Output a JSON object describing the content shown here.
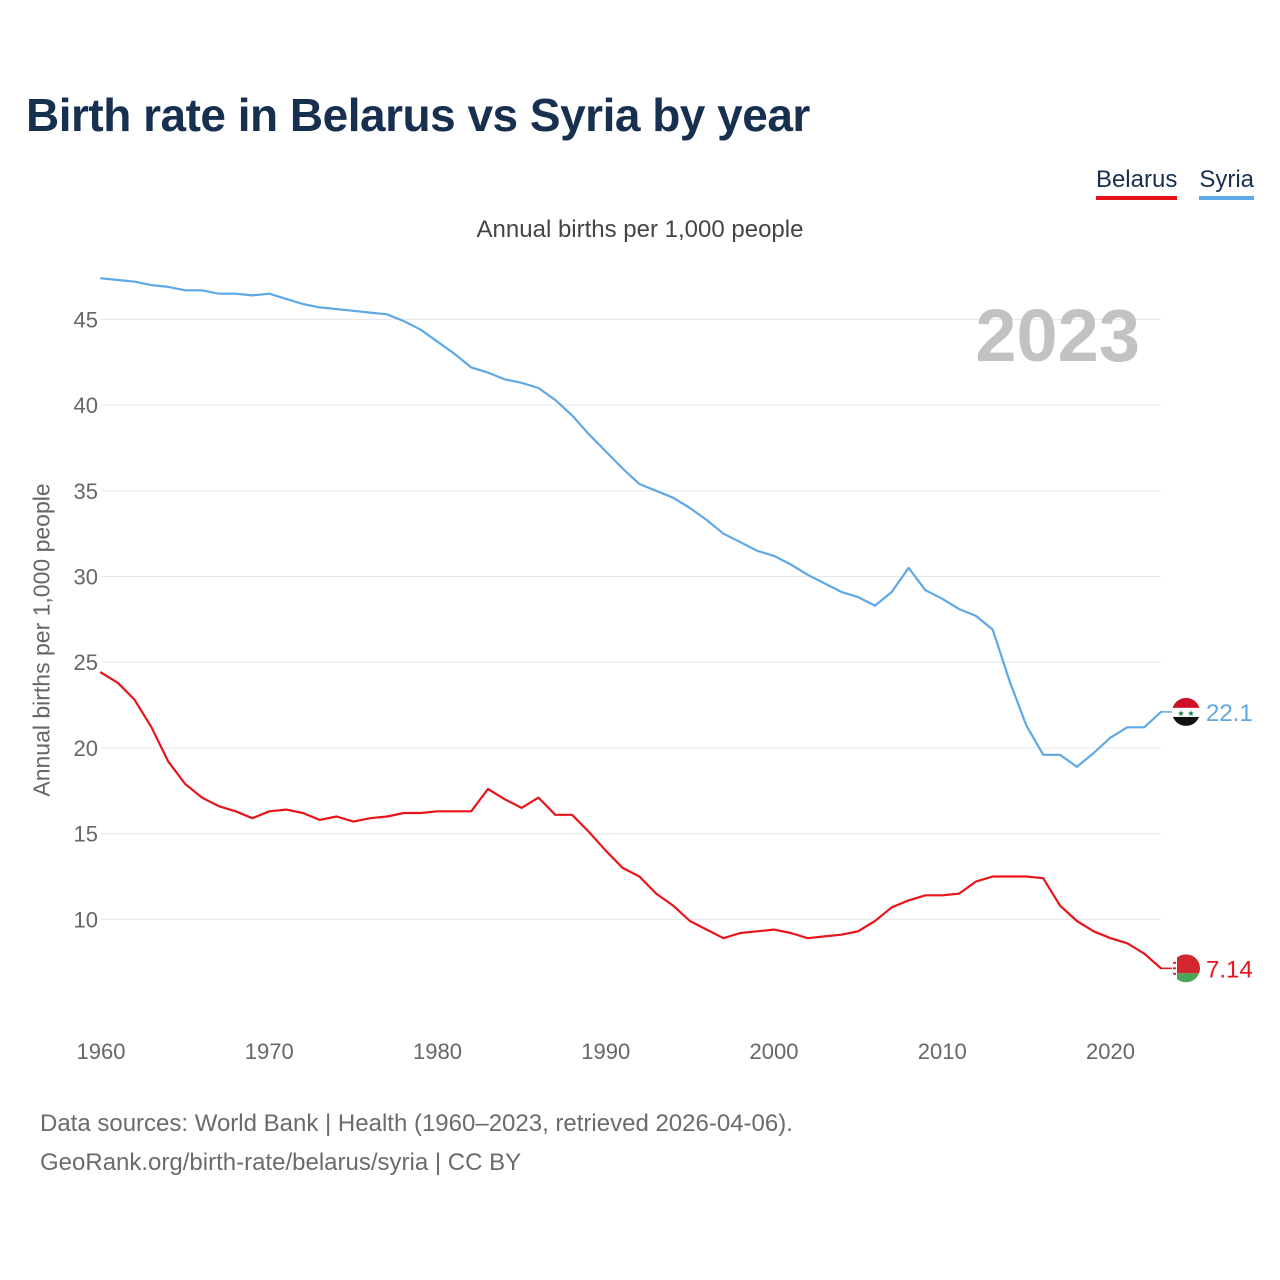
{
  "title": "Birth rate in Belarus vs Syria by year",
  "subtitle": "Annual births per 1,000 people",
  "source_line1": "Data sources: World Bank | Health (1960–2023, retrieved 2026-04-06).",
  "source_line2": "GeoRank.org/birth-rate/belarus/syria | CC BY",
  "legend": [
    {
      "label": "Belarus",
      "color": "#e8141a"
    },
    {
      "label": "Syria",
      "color": "#5ea8e6"
    }
  ],
  "chart_data": {
    "type": "line",
    "title": "Birth rate in Belarus vs Syria by year",
    "subtitle": "Annual births per 1,000 people",
    "xlabel": "",
    "ylabel": "Annual births per 1,000 people",
    "current_year": "2023",
    "xlim": [
      1960,
      2023
    ],
    "ylim": [
      5,
      48
    ],
    "x_ticks": [
      1960,
      1970,
      1980,
      1990,
      2000,
      2010,
      2020
    ],
    "y_ticks": [
      10,
      15,
      20,
      25,
      30,
      35,
      40,
      45
    ],
    "grid": true,
    "legend_position": "top-right",
    "x": [
      1960,
      1961,
      1962,
      1963,
      1964,
      1965,
      1966,
      1967,
      1968,
      1969,
      1970,
      1971,
      1972,
      1973,
      1974,
      1975,
      1976,
      1977,
      1978,
      1979,
      1980,
      1981,
      1982,
      1983,
      1984,
      1985,
      1986,
      1987,
      1988,
      1989,
      1990,
      1991,
      1992,
      1993,
      1994,
      1995,
      1996,
      1997,
      1998,
      1999,
      2000,
      2001,
      2002,
      2003,
      2004,
      2005,
      2006,
      2007,
      2008,
      2009,
      2010,
      2011,
      2012,
      2013,
      2014,
      2015,
      2016,
      2017,
      2018,
      2019,
      2020,
      2021,
      2022,
      2023
    ],
    "series": [
      {
        "name": "Belarus",
        "color": "#e8141a",
        "end_label": "7.14",
        "values": [
          24.4,
          23.8,
          22.8,
          21.2,
          19.2,
          17.9,
          17.1,
          16.6,
          16.3,
          15.9,
          16.3,
          16.4,
          16.2,
          15.8,
          16.0,
          15.7,
          15.9,
          16.0,
          16.2,
          16.2,
          16.3,
          16.3,
          16.3,
          17.6,
          17.0,
          16.5,
          17.1,
          16.1,
          16.1,
          15.1,
          14.0,
          13.0,
          12.5,
          11.5,
          10.8,
          9.9,
          9.4,
          8.9,
          9.2,
          9.3,
          9.4,
          9.2,
          8.9,
          9.0,
          9.1,
          9.3,
          9.9,
          10.7,
          11.1,
          11.4,
          11.4,
          11.5,
          12.2,
          12.5,
          12.5,
          12.5,
          12.4,
          10.8,
          9.9,
          9.3,
          8.9,
          8.6,
          8.0,
          7.14
        ]
      },
      {
        "name": "Syria",
        "color": "#5ea8e6",
        "end_label": "22.1",
        "values": [
          47.4,
          47.3,
          47.2,
          47.0,
          46.9,
          46.7,
          46.7,
          46.5,
          46.5,
          46.4,
          46.5,
          46.2,
          45.9,
          45.7,
          45.6,
          45.5,
          45.4,
          45.3,
          44.9,
          44.4,
          43.7,
          43.0,
          42.2,
          41.9,
          41.5,
          41.3,
          41.0,
          40.3,
          39.4,
          38.3,
          37.3,
          36.3,
          35.4,
          35.0,
          34.6,
          34.0,
          33.3,
          32.5,
          32.0,
          31.5,
          31.2,
          30.7,
          30.1,
          29.6,
          29.1,
          28.8,
          28.3,
          29.1,
          30.5,
          29.2,
          28.7,
          28.1,
          27.7,
          26.9,
          23.9,
          21.3,
          19.6,
          19.6,
          18.9,
          19.7,
          20.6,
          21.2,
          21.2,
          22.1
        ]
      }
    ]
  }
}
